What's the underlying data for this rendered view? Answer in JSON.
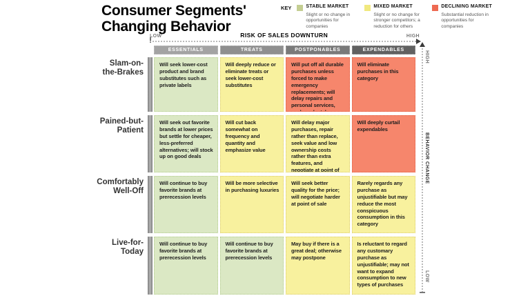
{
  "title": "Consumer Segments'\nChanging Behavior",
  "key": {
    "label": "KEY",
    "items": [
      {
        "name": "STABLE MARKET",
        "color": "#c4ce92",
        "description": "Slight or no change in opportunities for companies"
      },
      {
        "name": "MIXED MARKET",
        "color": "#f1e97f",
        "description": "Slight or no change for stronger competitors; a reduction for others"
      },
      {
        "name": "DECLINING MARKET",
        "color": "#ee6a52",
        "description": "Substantial reduction in opportunities for companies"
      }
    ]
  },
  "x_axis": {
    "title": "RISK OF SALES DOWNTURN",
    "min_label": "LOW",
    "max_label": "HIGH"
  },
  "y_axis": {
    "title": "BEHAVIOR CHANGE",
    "top_label": "HIGH",
    "bottom_label": "LOW"
  },
  "columns": [
    {
      "label": "ESSENTIALS",
      "color": "#a3a3a3"
    },
    {
      "label": "TREATS",
      "color": "#8f8f8f"
    },
    {
      "label": "POSTPONABLES",
      "color": "#7a7a7a"
    },
    {
      "label": "EXPENDABLES",
      "color": "#616161"
    }
  ],
  "cell_styles": {
    "stable": {
      "bg": "#dbe8c4",
      "border": "#b2cc8d"
    },
    "mixed": {
      "bg": "#f8f19e",
      "border": "#dccd6d"
    },
    "declining": {
      "bg": "#f6866c",
      "border": "#e25e44"
    }
  },
  "rows": [
    {
      "label": "Slam-on-\nthe-Brakes",
      "cells": [
        {
          "market": "stable",
          "text": "Will seek lower-cost product and brand substitutes such as private labels"
        },
        {
          "market": "mixed",
          "text": "Will deeply reduce or eliminate treats or seek lower-cost substitutes"
        },
        {
          "market": "declining",
          "text": "Will put off all durable purchases unless forced to make emergency replacements; will delay repairs and personal services, such as dental cleanings"
        },
        {
          "market": "declining",
          "text": "Will eliminate purchases in this category"
        }
      ]
    },
    {
      "label": "Pained-but-\nPatient",
      "cells": [
        {
          "market": "stable",
          "text": "Will seek out favorite brands at lower prices but settle for cheaper, less-preferred alternatives; will stock up on good deals"
        },
        {
          "market": "mixed",
          "text": "Will cut back somewhat on frequency and quantity and emphasize value"
        },
        {
          "market": "mixed",
          "text": "Will delay major purchases, repair rather than replace, seek value and low ownership costs rather than extra features, and negotiate at point of sale"
        },
        {
          "market": "declining",
          "text": "Will deeply curtail expendables"
        }
      ]
    },
    {
      "label": "Comfortably\nWell-Off",
      "cells": [
        {
          "market": "stable",
          "text": "Will continue to buy favorite brands at prerecession levels"
        },
        {
          "market": "mixed",
          "text": "Will be more selective in purchasing luxuries"
        },
        {
          "market": "mixed",
          "text": "Will seek better quality for the price; will negotiate harder at point of sale"
        },
        {
          "market": "mixed",
          "text": "Rarely regards any purchase as unjustifiable but may reduce the most conspicuous consumption in this category"
        }
      ]
    },
    {
      "label": "Live-for-\nToday",
      "cells": [
        {
          "market": "stable",
          "text": "Will continue to buy favorite brands at prerecession levels"
        },
        {
          "market": "stable",
          "text": "Will continue to buy favorite brands at prerecession levels"
        },
        {
          "market": "mixed",
          "text": "May buy if there is a great deal; otherwise may postpone"
        },
        {
          "market": "mixed",
          "text": "Is reluctant to regard any customary purchase as unjustifiable; may not want to expand consumption to new types of purchases"
        }
      ]
    }
  ]
}
